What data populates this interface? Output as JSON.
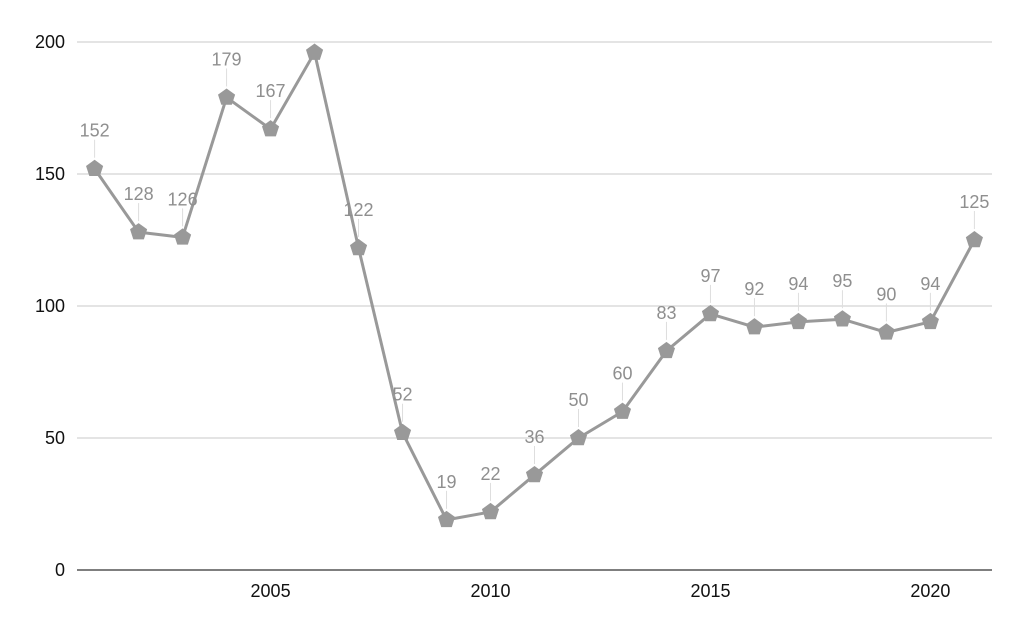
{
  "chart_data": {
    "type": "line",
    "title": "",
    "xlabel": "",
    "ylabel": "",
    "x": [
      2001,
      2002,
      2003,
      2004,
      2005,
      2006,
      2007,
      2008,
      2009,
      2010,
      2011,
      2012,
      2013,
      2014,
      2015,
      2016,
      2017,
      2018,
      2019,
      2020,
      2021
    ],
    "series": [
      {
        "values": [
          152,
          128,
          126,
          179,
          167,
          196,
          122,
          52,
          19,
          22,
          36,
          50,
          60,
          83,
          97,
          92,
          94,
          95,
          90,
          94,
          125
        ],
        "data_labels": [
          "152",
          "128",
          "126",
          "179",
          "167",
          "",
          "122",
          "52",
          "19",
          "22",
          "36",
          "50",
          "60",
          "83",
          "97",
          "92",
          "94",
          "95",
          "90",
          "94",
          "125"
        ],
        "color": "#999999",
        "marker": "pentagon"
      }
    ],
    "xlim": [
      2000.6,
      2021.4
    ],
    "ylim": [
      0,
      200
    ],
    "yticks": [
      0,
      50,
      100,
      150,
      200
    ],
    "ytick_labels": [
      "0",
      "50",
      "100",
      "150",
      "200"
    ],
    "xticks": [
      2005,
      2010,
      2015,
      2020
    ],
    "xtick_labels": [
      "2005",
      "2010",
      "2015",
      "2020"
    ],
    "grid": true,
    "legend": "none"
  }
}
